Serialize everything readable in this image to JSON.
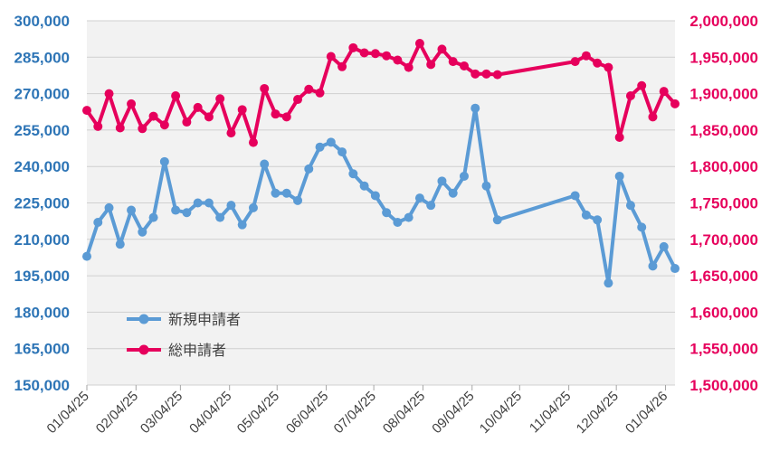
{
  "chart_data": {
    "type": "line",
    "x_ticks": [
      "01/04/25",
      "02/04/25",
      "03/04/25",
      "04/04/25",
      "05/04/25",
      "06/04/25",
      "07/04/25",
      "08/04/25",
      "09/04/25",
      "10/04/25",
      "11/04/25",
      "12/04/25",
      "01/04/26"
    ],
    "y_left": {
      "range": [
        150000,
        300000
      ],
      "ticks": [
        150000,
        165000,
        180000,
        195000,
        210000,
        225000,
        240000,
        255000,
        270000,
        285000,
        300000
      ],
      "tick_labels": [
        "150,000",
        "165,000",
        "180,000",
        "195,000",
        "210,000",
        "225,000",
        "240,000",
        "255,000",
        "270,000",
        "285,000",
        "300,000"
      ],
      "color": "#2e75b6"
    },
    "y_right": {
      "range": [
        1500000,
        2000000
      ],
      "ticks": [
        1500000,
        1550000,
        1600000,
        1650000,
        1700000,
        1750000,
        1800000,
        1850000,
        1900000,
        1950000,
        2000000
      ],
      "tick_labels": [
        "1,500,000",
        "1,550,000",
        "1,600,000",
        "1,650,000",
        "1,700,000",
        "1,750,000",
        "1,800,000",
        "1,850,000",
        "1,900,000",
        "1,950,000",
        "2,000,000"
      ],
      "color": "#e6005c"
    },
    "grid": true,
    "legend_position": "lower-left",
    "series": [
      {
        "name": "新規申請者",
        "axis": "left",
        "color": "#5b9bd5",
        "points": [
          [
            "2025-01-04",
            203000
          ],
          [
            "2025-01-11",
            217000
          ],
          [
            "2025-01-18",
            223000
          ],
          [
            "2025-01-25",
            208000
          ],
          [
            "2025-02-01",
            222000
          ],
          [
            "2025-02-08",
            213000
          ],
          [
            "2025-02-15",
            219000
          ],
          [
            "2025-02-22",
            242000
          ],
          [
            "2025-03-01",
            222000
          ],
          [
            "2025-03-08",
            221000
          ],
          [
            "2025-03-15",
            225000
          ],
          [
            "2025-03-22",
            225000
          ],
          [
            "2025-03-29",
            219000
          ],
          [
            "2025-04-05",
            224000
          ],
          [
            "2025-04-12",
            216000
          ],
          [
            "2025-04-19",
            223000
          ],
          [
            "2025-04-26",
            241000
          ],
          [
            "2025-05-03",
            229000
          ],
          [
            "2025-05-10",
            229000
          ],
          [
            "2025-05-17",
            226000
          ],
          [
            "2025-05-24",
            239000
          ],
          [
            "2025-05-31",
            248000
          ],
          [
            "2025-06-07",
            250000
          ],
          [
            "2025-06-14",
            246000
          ],
          [
            "2025-06-21",
            237000
          ],
          [
            "2025-06-28",
            232000
          ],
          [
            "2025-07-05",
            228000
          ],
          [
            "2025-07-12",
            221000
          ],
          [
            "2025-07-19",
            217000
          ],
          [
            "2025-07-26",
            219000
          ],
          [
            "2025-08-02",
            227000
          ],
          [
            "2025-08-09",
            224000
          ],
          [
            "2025-08-16",
            234000
          ],
          [
            "2025-08-23",
            229000
          ],
          [
            "2025-08-30",
            236000
          ],
          [
            "2025-09-06",
            264000
          ],
          [
            "2025-09-13",
            232000
          ],
          [
            "2025-09-20",
            218000
          ],
          [
            "2025-11-08",
            228000
          ],
          [
            "2025-11-15",
            220000
          ],
          [
            "2025-11-22",
            218000
          ],
          [
            "2025-11-29",
            192000
          ],
          [
            "2025-12-06",
            236000
          ],
          [
            "2025-12-13",
            224000
          ],
          [
            "2025-12-20",
            215000
          ],
          [
            "2025-12-27",
            199000
          ],
          [
            "2026-01-03",
            207000
          ],
          [
            "2026-01-10",
            198000
          ]
        ]
      },
      {
        "name": "総申請者",
        "axis": "right",
        "color": "#e6005c",
        "points": [
          [
            "2025-01-04",
            1877000
          ],
          [
            "2025-01-11",
            1855000
          ],
          [
            "2025-01-18",
            1900000
          ],
          [
            "2025-01-25",
            1853000
          ],
          [
            "2025-02-01",
            1886000
          ],
          [
            "2025-02-08",
            1852000
          ],
          [
            "2025-02-15",
            1869000
          ],
          [
            "2025-02-22",
            1857000
          ],
          [
            "2025-03-01",
            1897000
          ],
          [
            "2025-03-08",
            1861000
          ],
          [
            "2025-03-15",
            1881000
          ],
          [
            "2025-03-22",
            1868000
          ],
          [
            "2025-03-29",
            1893000
          ],
          [
            "2025-04-05",
            1846000
          ],
          [
            "2025-04-12",
            1878000
          ],
          [
            "2025-04-19",
            1833000
          ],
          [
            "2025-04-26",
            1907000
          ],
          [
            "2025-05-03",
            1872000
          ],
          [
            "2025-05-10",
            1868000
          ],
          [
            "2025-05-17",
            1892000
          ],
          [
            "2025-05-24",
            1906000
          ],
          [
            "2025-05-31",
            1901000
          ],
          [
            "2025-06-07",
            1951000
          ],
          [
            "2025-06-14",
            1937000
          ],
          [
            "2025-06-21",
            1963000
          ],
          [
            "2025-06-28",
            1956000
          ],
          [
            "2025-07-05",
            1955000
          ],
          [
            "2025-07-12",
            1952000
          ],
          [
            "2025-07-19",
            1946000
          ],
          [
            "2025-07-26",
            1936000
          ],
          [
            "2025-08-02",
            1969000
          ],
          [
            "2025-08-09",
            1940000
          ],
          [
            "2025-08-16",
            1961000
          ],
          [
            "2025-08-23",
            1944000
          ],
          [
            "2025-08-30",
            1938000
          ],
          [
            "2025-09-06",
            1927000
          ],
          [
            "2025-09-13",
            1927000
          ],
          [
            "2025-09-20",
            1926000
          ],
          [
            "2025-11-08",
            1944000
          ],
          [
            "2025-11-15",
            1952000
          ],
          [
            "2025-11-22",
            1942000
          ],
          [
            "2025-11-29",
            1936000
          ],
          [
            "2025-12-06",
            1840000
          ],
          [
            "2025-12-13",
            1897000
          ],
          [
            "2025-12-20",
            1911000
          ],
          [
            "2025-12-27",
            1868000
          ],
          [
            "2026-01-03",
            1903000
          ],
          [
            "2026-01-10",
            1886000
          ]
        ]
      }
    ]
  }
}
